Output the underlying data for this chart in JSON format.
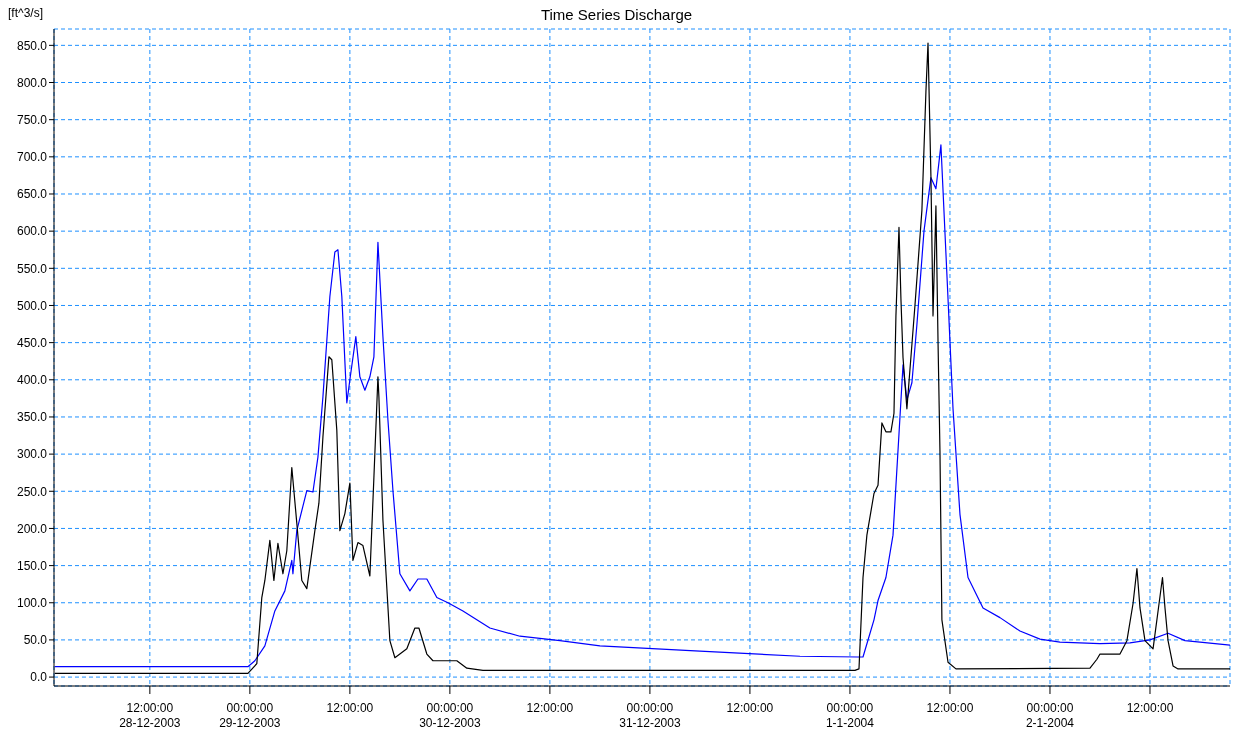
{
  "chart_data": {
    "type": "line",
    "title": "Time Series Discharge",
    "ylabel": "[ft^3/s]",
    "grid": true,
    "line_style": "solid",
    "marker": "none",
    "xlim": [
      "2003-12-28T00:30",
      "2004-01-02T21:36"
    ],
    "xticks": [
      {
        "value": "2003-12-28T12:00",
        "label": "12:00:00\n28-12-2003"
      },
      {
        "value": "2003-12-29T00:00",
        "label": "00:00:00\n29-12-2003"
      },
      {
        "value": "2003-12-29T12:00",
        "label": "12:00:00"
      },
      {
        "value": "2003-12-30T00:00",
        "label": "00:00:00\n30-12-2003"
      },
      {
        "value": "2003-12-30T12:00",
        "label": "12:00:00"
      },
      {
        "value": "2003-12-31T00:00",
        "label": "00:00:00\n31-12-2003"
      },
      {
        "value": "2003-12-31T12:00",
        "label": "12:00:00"
      },
      {
        "value": "2004-01-01T00:00",
        "label": "00:00:00\n1-1-2004"
      },
      {
        "value": "2004-01-01T12:00",
        "label": "12:00:00"
      },
      {
        "value": "2004-01-02T00:00",
        "label": "00:00:00\n2-1-2004"
      },
      {
        "value": "2004-01-02T12:00",
        "label": "12:00:00"
      }
    ],
    "ylim": [
      -12,
      872
    ],
    "yticks": [
      {
        "value": 0,
        "label": "0.0"
      },
      {
        "value": 50,
        "label": "50.0"
      },
      {
        "value": 100,
        "label": "100.0"
      },
      {
        "value": 150,
        "label": "150.0"
      },
      {
        "value": 200,
        "label": "200.0"
      },
      {
        "value": 250,
        "label": "250.0"
      },
      {
        "value": 300,
        "label": "300.0"
      },
      {
        "value": 350,
        "label": "350.0"
      },
      {
        "value": 400,
        "label": "400.0"
      },
      {
        "value": 450,
        "label": "450.0"
      },
      {
        "value": 500,
        "label": "500.0"
      },
      {
        "value": 550,
        "label": "550.0"
      },
      {
        "value": 600,
        "label": "600.0"
      },
      {
        "value": 650,
        "label": "650.0"
      },
      {
        "value": 700,
        "label": "700.0"
      },
      {
        "value": 750,
        "label": "750.0"
      },
      {
        "value": 800,
        "label": "800.0"
      },
      {
        "value": 850,
        "label": "850.0"
      }
    ],
    "series": [
      {
        "color": "#0000ff",
        "x": [
          "2003-12-28T00:36",
          "2003-12-28T23:46",
          "2003-12-29T00:36",
          "2003-12-29T01:48",
          "2003-12-29T03:00",
          "2003-12-29T04:12",
          "2003-12-29T05:02",
          "2003-12-29T05:10",
          "2003-12-29T05:38",
          "2003-12-29T06:50",
          "2003-12-29T07:34",
          "2003-12-29T08:10",
          "2003-12-29T08:46",
          "2003-12-29T09:36",
          "2003-12-29T10:12",
          "2003-12-29T10:34",
          "2003-12-29T11:02",
          "2003-12-29T11:38",
          "2003-12-29T12:00",
          "2003-12-29T12:43",
          "2003-12-29T13:12",
          "2003-12-29T13:48",
          "2003-12-29T14:24",
          "2003-12-29T14:53",
          "2003-12-29T15:22",
          "2003-12-29T15:58",
          "2003-12-29T16:34",
          "2003-12-29T17:10",
          "2003-12-29T18:00",
          "2003-12-29T19:12",
          "2003-12-29T20:10",
          "2003-12-29T21:14",
          "2003-12-29T22:26",
          "2003-12-29T23:46",
          "2003-12-30T01:34",
          "2003-12-30T04:48",
          "2003-12-30T08:24",
          "2003-12-30T13:12",
          "2003-12-30T18:00",
          "2003-12-31T06:00",
          "2003-12-31T18:00",
          "2004-01-01T00:58",
          "2004-01-01T01:34",
          "2004-01-01T02:53",
          "2004-01-01T03:22",
          "2004-01-01T04:19",
          "2004-01-01T05:10",
          "2004-01-01T05:53",
          "2004-01-01T06:22",
          "2004-01-01T06:50",
          "2004-01-01T07:26",
          "2004-01-01T08:02",
          "2004-01-01T08:53",
          "2004-01-01T09:43",
          "2004-01-01T10:19",
          "2004-01-01T10:55",
          "2004-01-01T11:46",
          "2004-01-01T12:22",
          "2004-01-01T13:12",
          "2004-01-01T14:10",
          "2004-01-01T15:58",
          "2004-01-01T18:00",
          "2004-01-01T20:24",
          "2004-01-01T22:48",
          "2004-01-02T01:12",
          "2004-01-02T06:00",
          "2004-01-02T09:36",
          "2004-01-02T12:00",
          "2004-01-02T14:10",
          "2004-01-02T16:12",
          "2004-01-02T21:36"
        ],
        "values": [
          14,
          14,
          22,
          42,
          89,
          116,
          157,
          139,
          197,
          251,
          249,
          296,
          377,
          512,
          572,
          575,
          512,
          369,
          400,
          458,
          404,
          386,
          404,
          431,
          585,
          458,
          346,
          251,
          139,
          116,
          132,
          132,
          107,
          100,
          89,
          66,
          55,
          49,
          42,
          35,
          28,
          27,
          27,
          77,
          103,
          134,
          191,
          327,
          420,
          373,
          396,
          474,
          600,
          672,
          657,
          716,
          509,
          361,
          219,
          134,
          93,
          80,
          62,
          51,
          47,
          45,
          46,
          50,
          59,
          49,
          43
        ]
      },
      {
        "color": "#000000",
        "x": [
          "2003-12-28T00:36",
          "2003-12-28T23:46",
          "2003-12-29T00:50",
          "2003-12-29T01:26",
          "2003-12-29T01:48",
          "2003-12-29T02:24",
          "2003-12-29T02:53",
          "2003-12-29T03:22",
          "2003-12-29T03:58",
          "2003-12-29T04:26",
          "2003-12-29T05:02",
          "2003-12-29T05:38",
          "2003-12-29T06:14",
          "2003-12-29T06:50",
          "2003-12-29T07:48",
          "2003-12-29T08:17",
          "2003-12-29T08:46",
          "2003-12-29T09:29",
          "2003-12-29T09:50",
          "2003-12-29T10:26",
          "2003-12-29T10:48",
          "2003-12-29T11:24",
          "2003-12-29T12:00",
          "2003-12-29T12:22",
          "2003-12-29T12:58",
          "2003-12-29T13:34",
          "2003-12-29T14:24",
          "2003-12-29T14:53",
          "2003-12-29T15:22",
          "2003-12-29T15:29",
          "2003-12-29T15:58",
          "2003-12-29T16:48",
          "2003-12-29T17:24",
          "2003-12-29T18:50",
          "2003-12-29T19:48",
          "2003-12-29T20:17",
          "2003-12-29T21:14",
          "2003-12-29T21:58",
          "2003-12-30T00:50",
          "2003-12-30T02:02",
          "2003-12-30T03:58",
          "2004-01-01T00:36",
          "2004-01-01T01:05",
          "2004-01-01T01:34",
          "2004-01-01T02:02",
          "2004-01-01T02:53",
          "2004-01-01T03:22",
          "2004-01-01T03:50",
          "2004-01-01T04:19",
          "2004-01-01T04:55",
          "2004-01-01T05:17",
          "2004-01-01T05:31",
          "2004-01-01T05:53",
          "2004-01-01T06:07",
          "2004-01-01T06:22",
          "2004-01-01T06:50",
          "2004-01-01T07:48",
          "2004-01-01T08:38",
          "2004-01-01T09:07",
          "2004-01-01T09:22",
          "2004-01-01T09:43",
          "2004-01-01T09:58",
          "2004-01-01T10:19",
          "2004-01-01T10:34",
          "2004-01-01T10:48",
          "2004-01-01T11:02",
          "2004-01-01T11:46",
          "2004-01-01T12:43",
          "2004-01-02T04:48",
          "2004-01-02T05:38",
          "2004-01-02T06:00",
          "2004-01-02T08:24",
          "2004-01-02T09:14",
          "2004-01-02T09:58",
          "2004-01-02T10:26",
          "2004-01-02T10:48",
          "2004-01-02T11:24",
          "2004-01-02T12:22",
          "2004-01-02T13:01",
          "2004-01-02T13:30",
          "2004-01-02T13:48",
          "2004-01-02T14:10",
          "2004-01-02T14:46",
          "2004-01-02T15:22",
          "2004-01-02T21:36"
        ],
        "values": [
          5,
          5,
          18,
          107,
          130,
          184,
          130,
          180,
          139,
          170,
          282,
          207,
          130,
          119,
          197,
          234,
          323,
          431,
          427,
          332,
          197,
          220,
          261,
          157,
          181,
          177,
          136,
          269,
          404,
          377,
          211,
          49,
          26,
          38,
          66,
          66,
          31,
          22,
          22,
          12,
          9,
          9,
          11,
          134,
          191,
          247,
          258,
          342,
          330,
          330,
          355,
          486,
          605,
          509,
          430,
          361,
          500,
          628,
          788,
          853,
          674,
          486,
          634,
          452,
          304,
          77,
          20,
          11,
          12,
          24,
          31,
          31,
          49,
          99,
          146,
          93,
          49,
          38,
          93,
          134,
          93,
          49,
          15,
          11,
          11
        ]
      }
    ]
  }
}
